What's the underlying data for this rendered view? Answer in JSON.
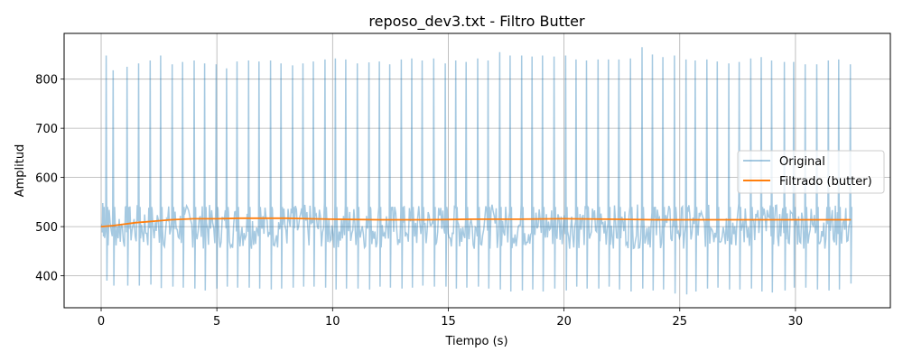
{
  "chart_data": {
    "type": "line",
    "title": "reposo_dev3.txt - Filtro Butter",
    "xlabel": "Tiempo (s)",
    "ylabel": "Amplitud",
    "xlim": [
      -1.6,
      34.1
    ],
    "ylim": [
      335,
      893
    ],
    "xticks": [
      0,
      5,
      10,
      15,
      20,
      25,
      30
    ],
    "yticks": [
      400,
      500,
      600,
      700,
      800
    ],
    "grid": true,
    "legend_position": "center-right",
    "legend": [
      "Original",
      "Filtrado (butter)"
    ],
    "colors": {
      "original": "#1f77b4",
      "filtered": "#ff7f0e"
    },
    "series": [
      {
        "name": "Original",
        "description_of_pattern": "periodic spike signal, baseline ~480-550",
        "spike_times": [
          0.05,
          0.2,
          0.5,
          1.1,
          1.6,
          2.1,
          2.55,
          3.05,
          3.5,
          4.0,
          4.45,
          4.95,
          5.4,
          5.85,
          6.35,
          6.8,
          7.3,
          7.75,
          8.25,
          8.7,
          9.15,
          9.65,
          10.1,
          10.55,
          11.05,
          11.55,
          12.0,
          12.45,
          12.95,
          13.4,
          13.85,
          14.35,
          14.85,
          15.3,
          15.75,
          16.25,
          16.7,
          17.2,
          17.65,
          18.15,
          18.6,
          19.05,
          19.55,
          20.05,
          20.5,
          20.95,
          21.45,
          21.9,
          22.35,
          22.85,
          23.35,
          23.8,
          24.25,
          24.75,
          25.25,
          25.65,
          26.15,
          26.6,
          27.1,
          27.55,
          28.05,
          28.5,
          28.95,
          29.5,
          29.9,
          30.4,
          30.9,
          31.4,
          31.85,
          32.35
        ],
        "spike_peaks": [
          548,
          848,
          818,
          825,
          832,
          838,
          848,
          830,
          835,
          838,
          832,
          830,
          822,
          836,
          838,
          836,
          838,
          832,
          828,
          832,
          836,
          840,
          842,
          840,
          832,
          834,
          836,
          830,
          840,
          842,
          838,
          842,
          832,
          838,
          835,
          842,
          838,
          855,
          848,
          848,
          846,
          848,
          846,
          848,
          840,
          838,
          840,
          840,
          840,
          842,
          865,
          850,
          845,
          848,
          840,
          838,
          840,
          836,
          832,
          835,
          842,
          845,
          838,
          835,
          835,
          830,
          830,
          838,
          840,
          830
        ],
        "spike_troughs": [
          480,
          390,
          380,
          380,
          380,
          382,
          375,
          378,
          376,
          374,
          370,
          374,
          378,
          376,
          376,
          374,
          372,
          374,
          376,
          378,
          378,
          376,
          372,
          374,
          374,
          372,
          378,
          376,
          374,
          376,
          380,
          378,
          378,
          374,
          376,
          378,
          374,
          372,
          368,
          370,
          372,
          368,
          374,
          370,
          378,
          374,
          374,
          378,
          372,
          368,
          374,
          370,
          372,
          364,
          362,
          368,
          374,
          376,
          372,
          372,
          374,
          368,
          366,
          370,
          376,
          376,
          372,
          370,
          372,
          384
        ]
      },
      {
        "name": "Filtrado (butter)",
        "x": [
          0,
          0.5,
          1,
          1.5,
          2,
          2.5,
          3,
          4,
          5,
          6,
          7,
          8,
          9,
          10,
          12,
          14,
          16,
          18,
          20,
          22,
          24,
          26,
          28,
          30,
          32.4
        ],
        "y": [
          500,
          502,
          505,
          508,
          510,
          512,
          514,
          516,
          516,
          517,
          517,
          517,
          516,
          515,
          514,
          514,
          515,
          515,
          516,
          515,
          514,
          514,
          514,
          514,
          514
        ]
      }
    ]
  }
}
